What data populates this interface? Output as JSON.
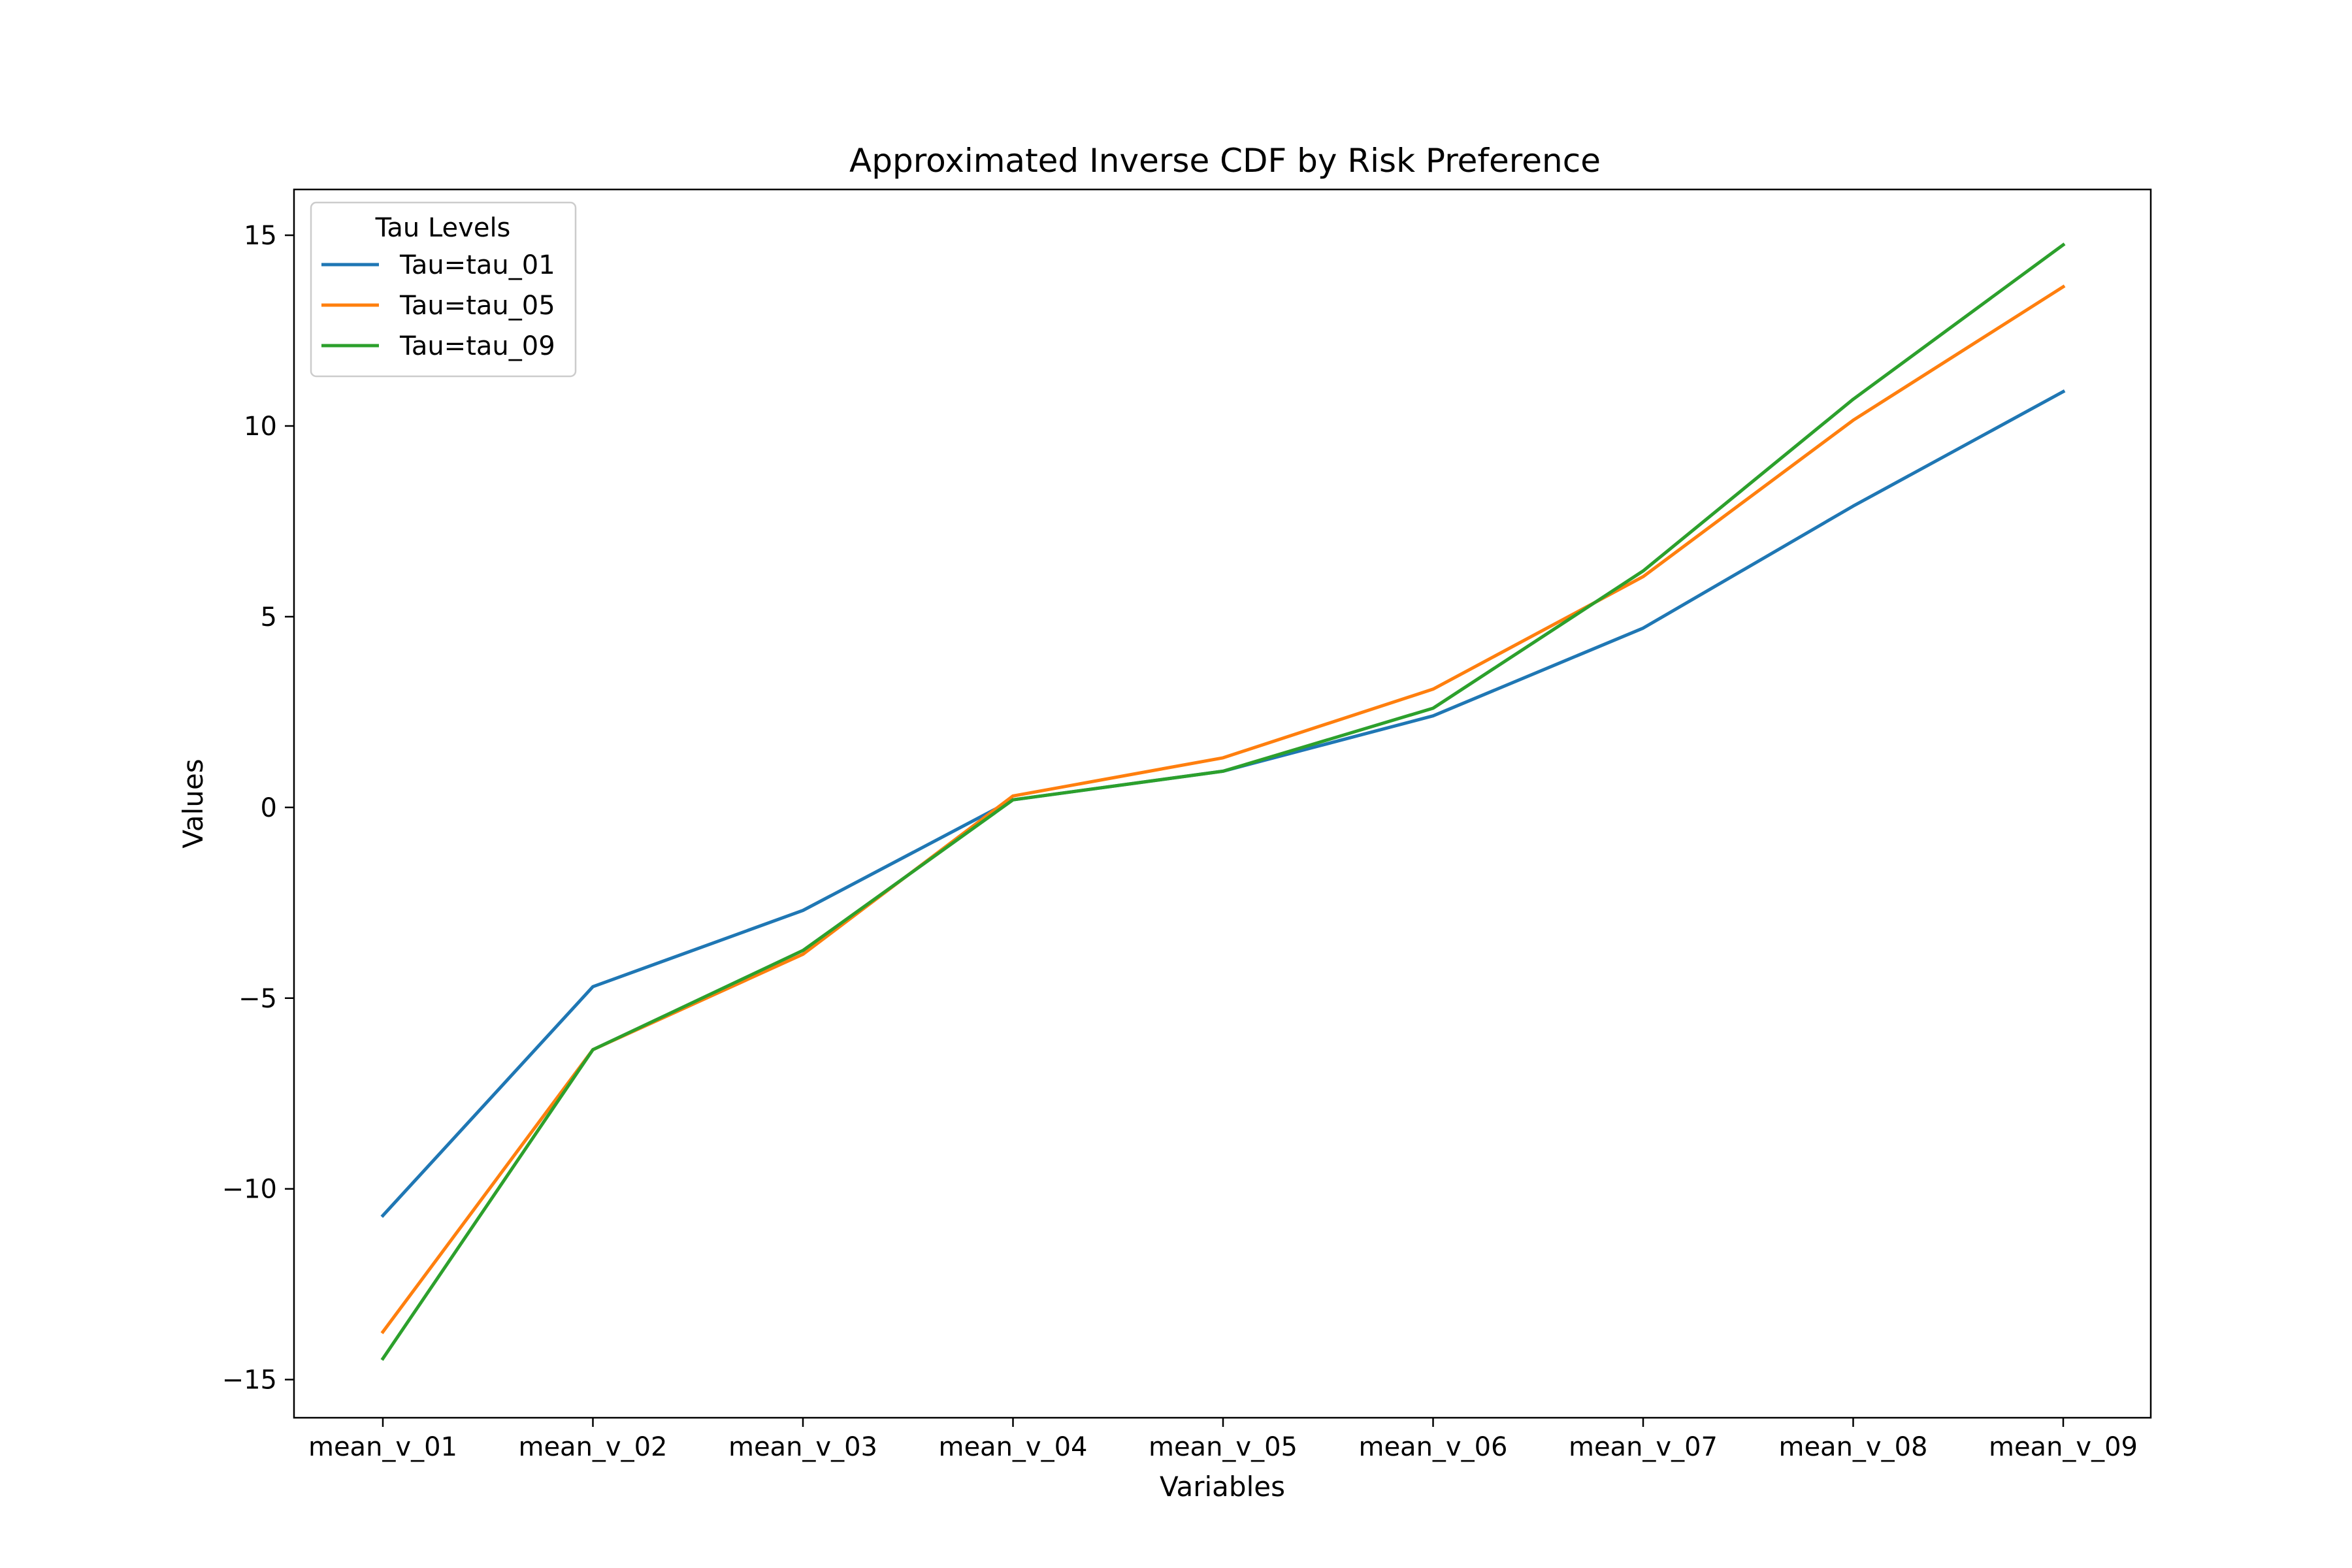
{
  "chart_data": {
    "type": "line",
    "title": "Approximated Inverse CDF by Risk Preference",
    "xlabel": "Variables",
    "ylabel": "Values",
    "categories": [
      "mean_v_01",
      "mean_v_02",
      "mean_v_03",
      "mean_v_04",
      "mean_v_05",
      "mean_v_06",
      "mean_v_07",
      "mean_v_08",
      "mean_v_09"
    ],
    "ylim": [
      -16.0,
      16.2
    ],
    "yticks": [
      -15,
      -10,
      -5,
      0,
      5,
      10,
      15
    ],
    "ytick_labels": [
      "−15",
      "−10",
      "−5",
      "0",
      "5",
      "10",
      "15"
    ],
    "grid": false,
    "legend": {
      "title": "Tau Levels",
      "placement": "top-left"
    },
    "series": [
      {
        "name": "Tau=tau_01",
        "color": "#1f77b4",
        "values": [
          -10.7,
          -4.7,
          -2.7,
          0.2,
          0.95,
          2.4,
          4.7,
          7.9,
          10.9
        ]
      },
      {
        "name": "Tau=tau_05",
        "color": "#ff7f0e",
        "values": [
          -13.75,
          -6.35,
          -3.85,
          0.3,
          1.3,
          3.1,
          6.05,
          10.15,
          13.65
        ]
      },
      {
        "name": "Tau=tau_09",
        "color": "#2ca02c",
        "values": [
          -14.45,
          -6.35,
          -3.75,
          0.2,
          0.95,
          2.6,
          6.2,
          10.7,
          14.75
        ]
      }
    ]
  }
}
